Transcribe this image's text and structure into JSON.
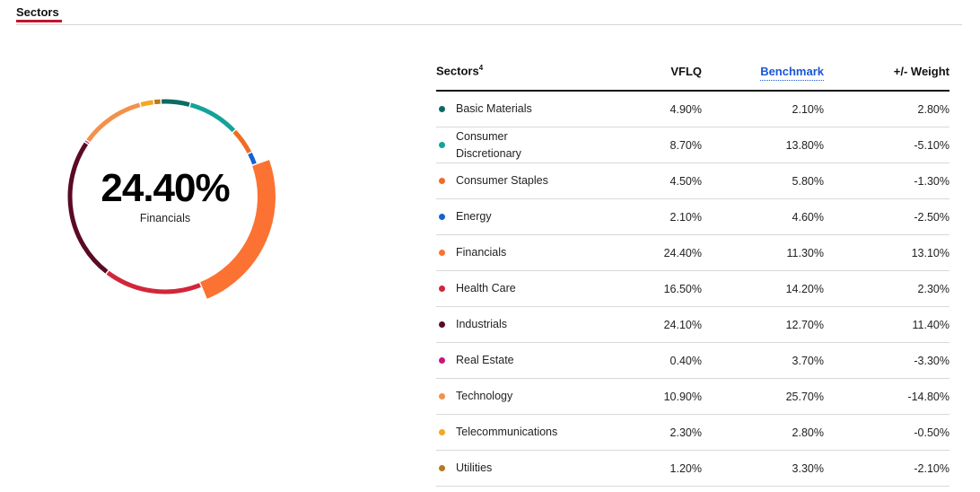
{
  "tab": {
    "label": "Sectors"
  },
  "donut": {
    "value": "24.40%",
    "label": "Financials"
  },
  "table": {
    "headers": {
      "name": "Sectors",
      "name_sup": "4",
      "fund": "VFLQ",
      "benchmark": "Benchmark",
      "diff": "+/- Weight"
    },
    "rows": [
      {
        "name": "Basic Materials",
        "color": "#0b6b63",
        "fund": "4.90%",
        "benchmark": "2.10%",
        "diff": "2.80%"
      },
      {
        "name": "Consumer Discretionary",
        "color": "#12a39a",
        "fund": "8.70%",
        "benchmark": "13.80%",
        "diff": "-5.10%"
      },
      {
        "name": "Consumer Staples",
        "color": "#ef6c24",
        "fund": "4.50%",
        "benchmark": "5.80%",
        "diff": "-1.30%"
      },
      {
        "name": "Energy",
        "color": "#1463cf",
        "fund": "2.10%",
        "benchmark": "4.60%",
        "diff": "-2.50%"
      },
      {
        "name": "Financials",
        "color": "#fb7232",
        "fund": "24.40%",
        "benchmark": "11.30%",
        "diff": "13.10%"
      },
      {
        "name": "Health Care",
        "color": "#d2263a",
        "fund": "16.50%",
        "benchmark": "14.20%",
        "diff": "2.30%"
      },
      {
        "name": "Industrials",
        "color": "#5b0a24",
        "fund": "24.10%",
        "benchmark": "12.70%",
        "diff": "11.40%"
      },
      {
        "name": "Real Estate",
        "color": "#c8167a",
        "fund": "0.40%",
        "benchmark": "3.70%",
        "diff": "-3.30%"
      },
      {
        "name": "Technology",
        "color": "#f2914a",
        "fund": "10.90%",
        "benchmark": "25.70%",
        "diff": "-14.80%"
      },
      {
        "name": "Telecommunications",
        "color": "#f5a623",
        "fund": "2.30%",
        "benchmark": "2.80%",
        "diff": "-0.50%"
      },
      {
        "name": "Utilities",
        "color": "#b8791f",
        "fund": "1.20%",
        "benchmark": "3.30%",
        "diff": "-2.10%"
      }
    ]
  },
  "chart_data": {
    "type": "pie",
    "selected": "Financials",
    "categories": [
      "Basic Materials",
      "Consumer Discretionary",
      "Consumer Staples",
      "Energy",
      "Financials",
      "Health Care",
      "Industrials",
      "Real Estate",
      "Technology",
      "Telecommunications",
      "Utilities"
    ],
    "values": [
      4.9,
      8.7,
      4.5,
      2.1,
      24.4,
      16.5,
      24.1,
      0.4,
      10.9,
      2.3,
      1.2
    ],
    "colors": [
      "#0b6b63",
      "#12a39a",
      "#ef6c24",
      "#1463cf",
      "#fb7232",
      "#d2263a",
      "#5b0a24",
      "#c8167a",
      "#f2914a",
      "#f5a623",
      "#b8791f"
    ]
  }
}
